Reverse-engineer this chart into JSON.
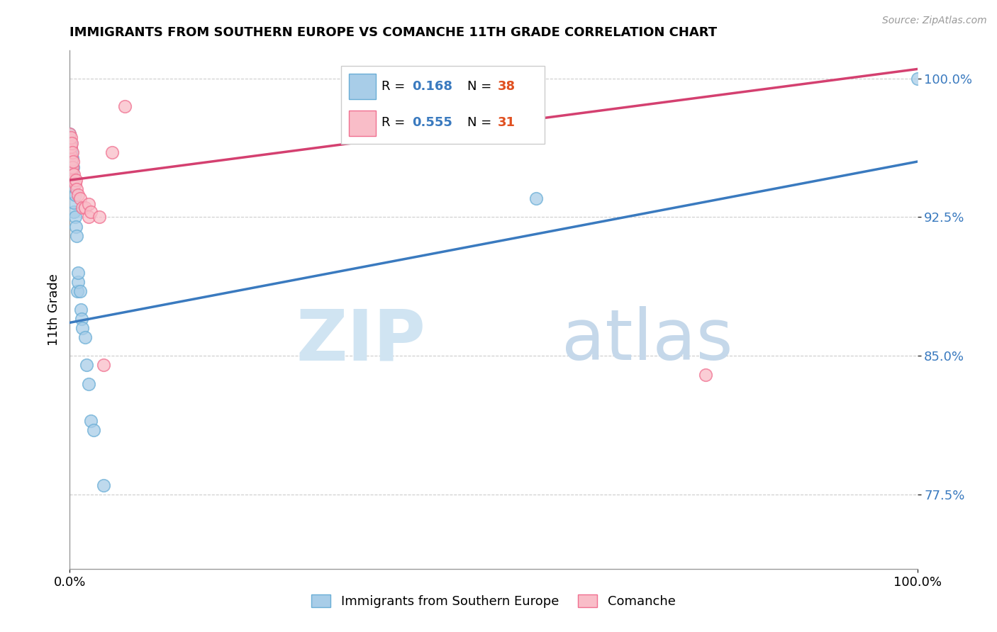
{
  "title": "IMMIGRANTS FROM SOUTHERN EUROPE VS COMANCHE 11TH GRADE CORRELATION CHART",
  "source": "Source: ZipAtlas.com",
  "ylabel": "11th Grade",
  "xlim": [
    0.0,
    1.0
  ],
  "ylim": [
    0.735,
    1.015
  ],
  "yticks": [
    0.775,
    0.85,
    0.925,
    1.0
  ],
  "ytick_labels": [
    "77.5%",
    "85.0%",
    "92.5%",
    "100.0%"
  ],
  "xticks": [
    0.0,
    1.0
  ],
  "xtick_labels": [
    "0.0%",
    "100.0%"
  ],
  "legend_r1": "R = ",
  "legend_v1": "0.168",
  "legend_n1_label": "N = ",
  "legend_n1_val": "38",
  "legend_r2": "R = ",
  "legend_v2": "0.555",
  "legend_n2_label": "N = ",
  "legend_n2_val": "31",
  "blue_color": "#a8cde8",
  "blue_edge_color": "#6aaed6",
  "pink_color": "#f9bdc8",
  "pink_edge_color": "#f07090",
  "blue_line_color": "#3a7abf",
  "pink_line_color": "#d44070",
  "blue_text_color": "#3a7abf",
  "pink_text_color": "#d44070",
  "n_text_color": "#e05020",
  "blue_scatter_x": [
    0.0,
    0.0,
    0.0,
    0.0,
    0.0,
    0.0,
    0.001,
    0.001,
    0.001,
    0.001,
    0.002,
    0.002,
    0.002,
    0.003,
    0.003,
    0.004,
    0.004,
    0.005,
    0.005,
    0.006,
    0.006,
    0.007,
    0.008,
    0.009,
    0.01,
    0.01,
    0.012,
    0.013,
    0.014,
    0.015,
    0.018,
    0.02,
    0.022,
    0.025,
    0.028,
    0.04,
    0.55,
    1.0
  ],
  "blue_scatter_y": [
    0.955,
    0.96,
    0.963,
    0.965,
    0.967,
    0.97,
    0.953,
    0.958,
    0.962,
    0.965,
    0.942,
    0.952,
    0.96,
    0.95,
    0.957,
    0.942,
    0.952,
    0.928,
    0.933,
    0.925,
    0.937,
    0.92,
    0.915,
    0.885,
    0.89,
    0.895,
    0.885,
    0.875,
    0.87,
    0.865,
    0.86,
    0.845,
    0.835,
    0.815,
    0.81,
    0.78,
    0.935,
    1.0
  ],
  "pink_scatter_x": [
    0.0,
    0.0,
    0.0,
    0.0,
    0.001,
    0.001,
    0.001,
    0.002,
    0.002,
    0.002,
    0.003,
    0.003,
    0.004,
    0.004,
    0.005,
    0.006,
    0.007,
    0.008,
    0.01,
    0.012,
    0.015,
    0.018,
    0.022,
    0.022,
    0.025,
    0.035,
    0.04,
    0.05,
    0.065,
    0.55,
    0.75
  ],
  "pink_scatter_y": [
    0.96,
    0.963,
    0.967,
    0.97,
    0.958,
    0.963,
    0.968,
    0.95,
    0.956,
    0.965,
    0.952,
    0.96,
    0.945,
    0.955,
    0.948,
    0.943,
    0.945,
    0.94,
    0.937,
    0.935,
    0.93,
    0.93,
    0.925,
    0.932,
    0.928,
    0.925,
    0.845,
    0.96,
    0.985,
    0.99,
    0.84
  ],
  "blue_line_x": [
    0.0,
    1.0
  ],
  "blue_line_y": [
    0.868,
    0.955
  ],
  "pink_line_x": [
    0.0,
    1.0
  ],
  "pink_line_y": [
    0.945,
    1.005
  ]
}
